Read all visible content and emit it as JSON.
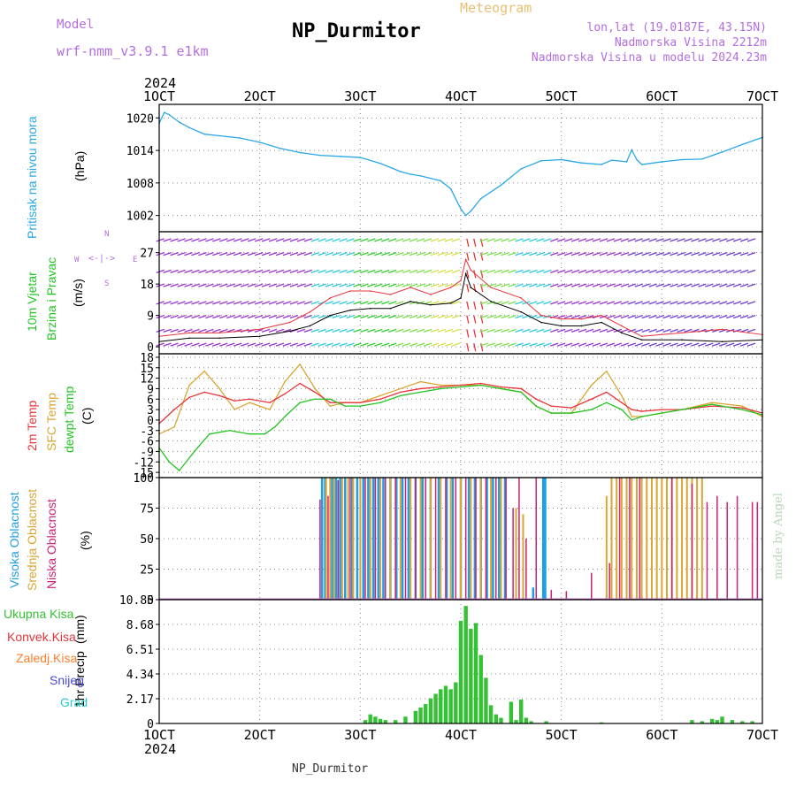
{
  "header": {
    "title": "NP_Durmitor",
    "meteogram": "Meteogram",
    "model_label": "Model",
    "model_name": "wrf-nmm_v3.9.1  e1km",
    "lonlat": "lon,lat (19.0187E, 43.15N)",
    "altitude": "Nadmorska Visina 2212m",
    "model_altitude": "Nadmorska Visina u modelu 2024.23m",
    "year_top": "2024",
    "footer_name": "NP_Durmitor",
    "watermark": "made by Angel",
    "year_bottom": "2024"
  },
  "colors": {
    "pressure": "#2aa7e6",
    "wind_speed": "#000000",
    "wind_gust": "#e8333a",
    "temp2m": "#e8333a",
    "sfc_temp": "#d9a633",
    "dewpt": "#22c422",
    "high_cloud": "#1e9ee6",
    "mid_cloud": "#d9a633",
    "low_cloud": "#cc2277",
    "total_precip": "#33c233",
    "label_purple": "#b36ee0"
  },
  "chart_data": [
    {
      "type": "line",
      "panel": "pressure",
      "ylabel_lines": [
        "Pritisak na nivou mora",
        "(hPa)"
      ],
      "x_ticks": [
        "1OCT",
        "2OCT",
        "3OCT",
        "4OCT",
        "5OCT",
        "6OCT",
        "7OCT"
      ],
      "y_ticks": [
        1002,
        1008,
        1014,
        1020
      ],
      "ylim": [
        999,
        1022.5
      ],
      "grid": true,
      "series": [
        {
          "x": [
            1,
            1.05,
            1.1,
            1.2,
            1.3,
            1.45,
            1.6,
            1.8,
            2.0,
            2.2,
            2.4,
            2.6,
            2.8,
            3.0,
            3.2,
            3.4,
            3.5,
            3.6,
            3.8,
            3.9,
            4.0,
            4.05,
            4.1,
            4.2,
            4.4,
            4.6,
            4.8,
            5.0,
            5.2,
            5.4,
            5.5,
            5.65,
            5.7,
            5.75,
            5.8,
            6.0,
            6.2,
            6.4,
            6.6,
            6.8,
            7.0
          ],
          "values": [
            1019,
            1021,
            1020.6,
            1019.2,
            1018.2,
            1017,
            1016.7,
            1016.3,
            1015.5,
            1014.4,
            1013.6,
            1013.1,
            1012.9,
            1012.7,
            1011.6,
            1010.1,
            1009.6,
            1009.3,
            1008.4,
            1006.9,
            1003.2,
            1002,
            1002.8,
            1005.1,
            1007.6,
            1010.6,
            1012.1,
            1012.3,
            1011.7,
            1011.4,
            1012.2,
            1011.9,
            1014.1,
            1012.3,
            1011.4,
            1011.9,
            1012.3,
            1012.4,
            1013.7,
            1015.1,
            1016.4
          ]
        }
      ]
    },
    {
      "type": "line",
      "panel": "wind",
      "ylabel_lines": [
        "10m Vjetar",
        "Brzina i Pravac",
        "(m/s)"
      ],
      "compass": [
        "N",
        "W",
        "E",
        "S"
      ],
      "x_ticks": [
        "1OCT",
        "2OCT",
        "3OCT",
        "4OCT",
        "5OCT",
        "6OCT",
        "7OCT"
      ],
      "y_ticks": [
        0,
        9,
        18,
        27
      ],
      "ylim": [
        -2,
        33
      ],
      "grid": true,
      "series": [
        {
          "name": "speed",
          "x": [
            1,
            1.3,
            1.6,
            2.0,
            2.3,
            2.5,
            2.7,
            2.9,
            3.1,
            3.3,
            3.5,
            3.7,
            3.9,
            4.0,
            4.05,
            4.1,
            4.3,
            4.6,
            4.8,
            5.0,
            5.2,
            5.4,
            5.6,
            5.8,
            6.2,
            6.6,
            7.0
          ],
          "values": [
            1.5,
            2.5,
            2.5,
            3,
            4.5,
            6,
            9,
            10.5,
            11,
            11,
            13,
            12,
            12.5,
            14,
            21,
            17,
            13,
            10,
            7,
            6,
            6,
            7,
            4,
            2,
            2,
            1.5,
            2
          ]
        },
        {
          "name": "gust",
          "x": [
            1,
            1.3,
            1.6,
            2.0,
            2.3,
            2.5,
            2.7,
            2.9,
            3.1,
            3.3,
            3.5,
            3.7,
            3.9,
            4.0,
            4.05,
            4.1,
            4.3,
            4.6,
            4.8,
            5.0,
            5.2,
            5.4,
            5.6,
            5.8,
            6.2,
            6.6,
            7.0
          ],
          "values": [
            3,
            4,
            4,
            5,
            7,
            10,
            14,
            16,
            16,
            15,
            17,
            15,
            17,
            19,
            25,
            22,
            17,
            14,
            9,
            8,
            8,
            9,
            6,
            3,
            4,
            5,
            3.5
          ]
        }
      ]
    },
    {
      "type": "line",
      "panel": "temperature",
      "ylabel_lines": [
        "2m Temp",
        "SFC Temp",
        "dewpt Temp",
        "(C)"
      ],
      "x_ticks": [
        "1OCT",
        "2OCT",
        "3OCT",
        "4OCT",
        "5OCT",
        "6OCT",
        "7OCT"
      ],
      "y_ticks": [
        -15,
        -12,
        -9,
        -6,
        -3,
        0,
        3,
        6,
        9,
        12,
        15,
        18
      ],
      "ylim": [
        -16.5,
        19
      ],
      "grid": true,
      "series": [
        {
          "name": "2m Temp",
          "x": [
            1,
            1.15,
            1.3,
            1.45,
            1.6,
            1.75,
            1.9,
            2.1,
            2.25,
            2.4,
            2.55,
            2.7,
            2.85,
            3.0,
            3.2,
            3.4,
            3.6,
            3.8,
            4.0,
            4.2,
            4.4,
            4.6,
            4.75,
            4.9,
            5.1,
            5.3,
            5.45,
            5.6,
            5.7,
            5.8,
            6.0,
            6.2,
            6.5,
            6.8,
            7.0
          ],
          "values": [
            -1,
            3,
            6.5,
            8,
            7,
            5.5,
            6,
            5,
            7.5,
            10.5,
            8,
            5,
            5,
            5,
            6,
            8,
            9,
            9.5,
            10,
            10.5,
            9.5,
            9,
            6,
            4,
            3.5,
            6,
            8,
            5,
            3,
            2.5,
            3,
            3,
            4,
            3.5,
            2
          ]
        },
        {
          "name": "SFC Temp",
          "x": [
            1,
            1.15,
            1.3,
            1.45,
            1.6,
            1.75,
            1.9,
            2.1,
            2.25,
            2.4,
            2.55,
            2.7,
            2.85,
            3.0,
            3.2,
            3.4,
            3.6,
            3.8,
            4.0,
            4.2,
            4.4,
            4.6,
            4.75,
            4.9,
            5.1,
            5.3,
            5.45,
            5.6,
            5.7,
            5.8,
            6.0,
            6.2,
            6.5,
            6.8,
            7.0
          ],
          "values": [
            -4,
            -2,
            10,
            14,
            9,
            3,
            5,
            3,
            11,
            16,
            9,
            4,
            5,
            5,
            7,
            9,
            11,
            10,
            10,
            10,
            9,
            8,
            4,
            2,
            2,
            10,
            14,
            7,
            1,
            1,
            2,
            3,
            5,
            4,
            1
          ]
        },
        {
          "name": "dewpt Temp",
          "x": [
            1,
            1.1,
            1.2,
            1.35,
            1.5,
            1.7,
            1.9,
            2.05,
            2.15,
            2.25,
            2.4,
            2.55,
            2.7,
            2.85,
            3.0,
            3.2,
            3.4,
            3.6,
            3.8,
            4.0,
            4.2,
            4.4,
            4.6,
            4.75,
            4.9,
            5.1,
            5.3,
            5.45,
            5.6,
            5.7,
            5.8,
            6.0,
            6.2,
            6.5,
            6.8,
            7.0
          ],
          "values": [
            -8,
            -12,
            -14.5,
            -9,
            -4,
            -3,
            -4,
            -4,
            -2,
            1,
            5,
            6,
            6,
            4,
            4,
            5,
            7,
            8,
            9,
            9.5,
            10,
            9,
            8,
            4,
            2,
            2,
            3,
            5,
            3,
            0,
            1,
            2,
            3,
            4.5,
            3,
            1.5
          ]
        }
      ]
    },
    {
      "type": "bar",
      "panel": "cloud",
      "ylabel_lines": [
        "Visoka Oblacnost",
        "Srednja Oblacnost",
        "Niska Oblacnost",
        "(%)"
      ],
      "x_ticks": [
        "1OCT",
        "2OCT",
        "3OCT",
        "4OCT",
        "5OCT",
        "6OCT",
        "7OCT"
      ],
      "y_ticks": [
        0,
        25,
        50,
        75,
        100
      ],
      "ylim": [
        0,
        100
      ],
      "grid": true,
      "series": [
        {
          "name": "high",
          "x": [
            2.62,
            2.65,
            2.72,
            2.76,
            2.8,
            2.85,
            2.92,
            2.97,
            3.03,
            3.08,
            3.13,
            3.18,
            3.23,
            3.3,
            3.36,
            3.42,
            3.48,
            3.55,
            3.62,
            3.7,
            3.78,
            3.86,
            3.92,
            4.0,
            4.08,
            4.14,
            4.2,
            4.26,
            4.32,
            4.38,
            4.44,
            4.72,
            4.82,
            4.84
          ],
          "values": [
            100,
            100,
            100,
            100,
            100,
            100,
            100,
            100,
            100,
            100,
            100,
            100,
            100,
            100,
            100,
            100,
            100,
            100,
            100,
            100,
            100,
            100,
            100,
            100,
            100,
            100,
            100,
            100,
            100,
            100,
            100,
            10,
            100,
            100
          ]
        },
        {
          "name": "mid",
          "x": [
            2.66,
            2.7,
            2.74,
            2.82,
            2.88,
            2.93,
            3.0,
            3.1,
            3.2,
            3.3,
            3.4,
            3.5,
            3.6,
            3.7,
            3.8,
            3.9,
            4.0,
            4.1,
            4.2,
            4.3,
            4.4,
            4.55,
            4.62,
            5.45,
            5.5,
            5.55,
            5.6,
            5.65,
            5.7,
            5.75,
            5.8,
            5.85,
            5.9,
            5.95,
            6.0,
            6.05,
            6.1,
            6.15,
            6.2,
            6.25,
            6.3,
            6.35,
            6.4
          ],
          "values": [
            100,
            100,
            100,
            100,
            100,
            100,
            100,
            100,
            100,
            100,
            100,
            100,
            100,
            100,
            100,
            100,
            100,
            100,
            100,
            100,
            100,
            75,
            70,
            85,
            100,
            100,
            100,
            100,
            100,
            100,
            100,
            100,
            100,
            100,
            100,
            100,
            100,
            100,
            100,
            100,
            100,
            100,
            100
          ]
        },
        {
          "name": "low",
          "x": [
            2.6,
            2.68,
            2.78,
            2.9,
            3.05,
            3.15,
            3.25,
            3.35,
            3.45,
            3.55,
            3.65,
            3.75,
            3.85,
            3.95,
            4.05,
            4.15,
            4.25,
            4.35,
            4.45,
            4.52,
            4.58,
            4.65,
            4.75,
            4.9,
            5.05,
            5.3,
            5.48,
            5.58,
            5.68,
            5.78,
            6.1,
            6.3,
            6.45,
            6.55,
            6.65,
            6.75,
            6.9,
            6.95
          ],
          "values": [
            82,
            85,
            98,
            100,
            100,
            100,
            100,
            100,
            100,
            100,
            100,
            100,
            100,
            100,
            100,
            100,
            100,
            100,
            100,
            75,
            100,
            50,
            100,
            8,
            7,
            22,
            30,
            100,
            100,
            100,
            100,
            95,
            80,
            85,
            80,
            85,
            80,
            80
          ]
        }
      ]
    },
    {
      "type": "bar",
      "panel": "precip",
      "ylabel_lines": [
        "1hr Precip",
        "(mm)"
      ],
      "legend": [
        "Ukupna Kisa",
        "Konvek.Kisa",
        "Zaledj.Kisa",
        "Snijeg",
        "Grad"
      ],
      "legend_colors": [
        "#33c233",
        "#e8333a",
        "#ff7f2a",
        "#4a4ae0",
        "#2ec8c8"
      ],
      "x_ticks": [
        "1OCT",
        "2OCT",
        "3OCT",
        "4OCT",
        "5OCT",
        "6OCT",
        "7OCT"
      ],
      "y_ticks": [
        0,
        2.17,
        4.34,
        6.51,
        8.68,
        10.85
      ],
      "ylim": [
        0,
        10.85
      ],
      "grid": true,
      "series": [
        {
          "name": "Ukupna Kisa",
          "x": [
            3.05,
            3.1,
            3.15,
            3.2,
            3.25,
            3.35,
            3.45,
            3.55,
            3.6,
            3.65,
            3.7,
            3.75,
            3.8,
            3.85,
            3.9,
            3.95,
            4.0,
            4.05,
            4.1,
            4.15,
            4.2,
            4.25,
            4.3,
            4.35,
            4.4,
            4.5,
            4.55,
            4.6,
            4.65,
            4.7,
            4.85,
            5.4,
            6.3,
            6.4,
            6.5,
            6.55,
            6.6,
            6.7,
            6.8,
            6.9
          ],
          "values": [
            0.3,
            0.8,
            0.6,
            0.4,
            0.3,
            0.3,
            0.6,
            1.1,
            1.4,
            1.7,
            2.2,
            2.6,
            3.0,
            3.3,
            3.0,
            3.6,
            9.0,
            10.3,
            8.3,
            8.8,
            6.0,
            4.0,
            1.6,
            0.8,
            0.5,
            1.9,
            0.3,
            2.1,
            0.5,
            0.2,
            0.2,
            0.1,
            0.3,
            0.2,
            0.4,
            0.3,
            0.6,
            0.3,
            0.2,
            0.2
          ]
        }
      ]
    }
  ]
}
